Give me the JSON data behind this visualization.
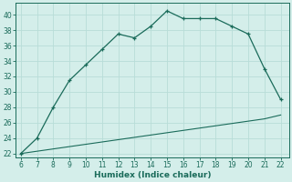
{
  "xlabel": "Humidex (Indice chaleur)",
  "ylabel": "",
  "bg_color": "#d4eeea",
  "grid_color": "#b8ddd8",
  "line_color": "#1a6b5a",
  "x_upper": [
    6,
    7,
    8,
    9,
    10,
    11,
    12,
    13,
    14,
    15,
    16,
    17,
    18,
    19,
    20,
    21,
    22
  ],
  "y_upper": [
    22,
    24,
    28,
    31.5,
    33.5,
    35.5,
    37.5,
    37.0,
    38.5,
    40.5,
    39.5,
    39.5,
    39.5,
    38.5,
    37.5,
    33.0,
    29.0
  ],
  "x_lower": [
    6,
    7,
    8,
    9,
    10,
    11,
    12,
    13,
    14,
    15,
    16,
    17,
    18,
    19,
    20,
    21,
    22
  ],
  "y_lower": [
    22,
    22.3,
    22.6,
    22.9,
    23.2,
    23.5,
    23.8,
    24.1,
    24.4,
    24.7,
    25.0,
    25.3,
    25.6,
    25.9,
    26.2,
    26.5,
    27.0
  ],
  "xlim": [
    5.7,
    22.5
  ],
  "ylim": [
    21.5,
    41.5
  ],
  "yticks": [
    22,
    24,
    26,
    28,
    30,
    32,
    34,
    36,
    38,
    40
  ],
  "xticks": [
    6,
    7,
    8,
    9,
    10,
    11,
    12,
    13,
    14,
    15,
    16,
    17,
    18,
    19,
    20,
    21,
    22
  ],
  "tick_fontsize": 5.5,
  "xlabel_fontsize": 6.5
}
